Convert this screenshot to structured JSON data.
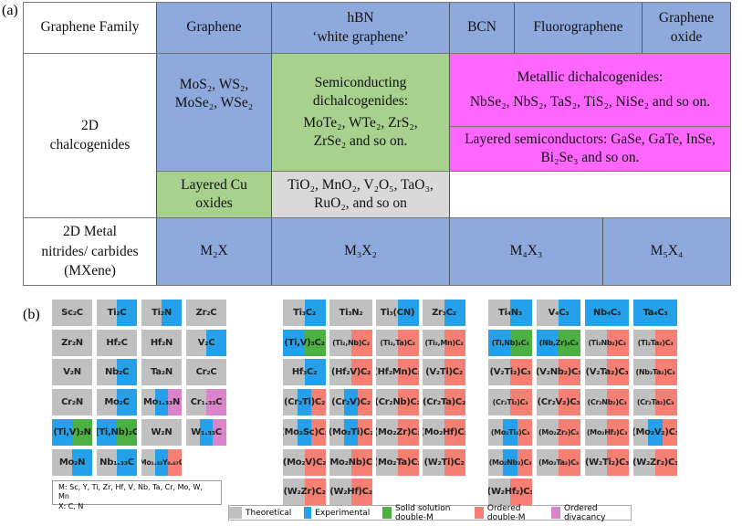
{
  "part_a": {
    "label": "(a)",
    "header": {
      "family": "Graphene Family",
      "graphene": "Graphene",
      "hbn_line1": "hBN",
      "hbn_line2": "‘white graphene’",
      "bcn": "BCN",
      "fluoro": "Fluorographene",
      "oxide_line1": "Graphene",
      "oxide_line2": "oxide"
    },
    "chalco": {
      "label_line1": "2D",
      "label_line2": "chalcogenides",
      "graphene_col": "MoS₂, WS₂, MoSe₂, WSe₂",
      "semi": "Semiconducting dichalcogenides:",
      "semi_list": "MoTe₂, WTe₂, ZrS₂, ZrSe₂ and so on.",
      "metallic": "Metallic dichalcogenides:",
      "metallic_list": "NbSe₂, NbS₂, TaS₂, TiS₂, NiSe₂ and so on.",
      "layered_semi": "Layered semiconductors: GaSe, GaTe, InSe, Bi₂Se₃ and so on.",
      "cu_oxides": "Layered Cu oxides",
      "oxides": "TiO₂, MnO₂, V₂O₅, TaO₃, RuO₂, and so on"
    },
    "mxene": {
      "label_line1": "2D Metal",
      "label_line2": "nitrides/ carbides",
      "label_line3": "(MXene)",
      "m2x": "M₂X",
      "m3x2": "M₃X₂",
      "m4x3": "M₄X₃",
      "m5x4": "M₅X₄"
    },
    "colors": {
      "blue": "#8eaadc",
      "green": "#a9d18e",
      "gray": "#d9d9d9",
      "magenta": "#ff66ff"
    }
  },
  "part_b": {
    "label": "(b)",
    "categories": {
      "T": {
        "name": "Theoretical",
        "color": "#c0c0c0"
      },
      "E": {
        "name": "Experimental",
        "color": "#25a0ea"
      },
      "S": {
        "name": "Solid solution double-M",
        "color": "#4cb043"
      },
      "O": {
        "name": "Ordered double-M",
        "color": "#f47f72"
      },
      "D": {
        "name": "Ordered divacancy",
        "color": "#dc84c9"
      }
    },
    "legend": [
      "T",
      "E",
      "S",
      "O",
      "D"
    ],
    "note_line1": "M: Sc, Y, Ti, Zr, Hf, V, Nb, Ta, Cr, Mo, W, Mn",
    "note_line2": "X: C, N",
    "blocks": [
      [
        [
          [
            "Sc₂C",
            "T"
          ],
          [
            "Ti₂C",
            "TE"
          ],
          [
            "Ti₂N",
            "TE"
          ],
          [
            "Zr₂C",
            "T"
          ]
        ],
        [
          [
            "Zr₂N",
            "T"
          ],
          [
            "Hf₂C",
            "T"
          ],
          [
            "Hf₂N",
            "T"
          ],
          [
            "V₂C",
            "TE"
          ]
        ],
        [
          [
            "V₂N",
            "T"
          ],
          [
            "Nb₂C",
            "TE"
          ],
          [
            "Ta₂N",
            "T"
          ],
          [
            "Cr₂C",
            "T"
          ]
        ],
        [
          [
            "Cr₂N",
            "T"
          ],
          [
            "Mo₂C",
            "TE"
          ],
          [
            "Mo₁.₃₃N",
            "TED"
          ],
          [
            "Cr₁.₃₃C",
            "TD"
          ]
        ],
        [
          [
            "(Ti,V)₂N",
            "ES"
          ],
          [
            "(Ti,Nb)₂C",
            "ES"
          ],
          [
            "W₂N",
            "T"
          ],
          [
            "W₁.₃₃C",
            "TED"
          ]
        ],
        [
          [
            "Mo₂N",
            "TE"
          ],
          [
            "Nb₁.₃₃C",
            "TE"
          ],
          [
            "Mo₁.₃₃Y₀.₆₇C",
            "TEO"
          ]
        ]
      ],
      [
        [
          [
            "Ti₃C₂",
            "TE"
          ],
          [
            "Ti₃N₂",
            "T"
          ],
          [
            "Ti₃(CN)",
            "TE"
          ],
          [
            "Zr₃C₂",
            "TE"
          ]
        ],
        [
          [
            "(Ti,V)₃C₂",
            "ES"
          ],
          [
            "(Ti₂,Nb)C₂",
            "TO"
          ],
          [
            "(Ti₂,Ta)C₂",
            "TO"
          ],
          [
            "(Ti₂,Mn)C₂",
            "TO"
          ]
        ],
        [
          [
            "Hf₃C₂",
            "TE"
          ],
          [
            "(Hf₂V)C₂",
            "TO"
          ],
          [
            "(Hf₂Mn)C₂",
            "TO"
          ],
          [
            "(V₂Ti)C₂",
            "TO"
          ]
        ],
        [
          [
            "(Cr₂Ti)C₂",
            "TEO"
          ],
          [
            "(Cr₂V)C₂",
            "TEO"
          ],
          [
            "(Cr₂Nb)C₂",
            "TO"
          ],
          [
            "(Cr₂Ta)C₂",
            "TO"
          ]
        ],
        [
          [
            "(Mo₂Sc)C₂",
            "TEO"
          ],
          [
            "(Mo₂Ti)C₂",
            "TEO"
          ],
          [
            "(Mo₂Zr)C₂",
            "TO"
          ],
          [
            "(Mo₂Hf)C₂",
            "TO"
          ]
        ],
        [
          [
            "(Mo₂V)C₂",
            "TO"
          ],
          [
            "(Mo₂Nb)C₂",
            "TO"
          ],
          [
            "(Mo₂Ta)C₂",
            "TO"
          ],
          [
            "(W₂Ti)C₂",
            "TO"
          ]
        ],
        [
          [
            "(W₂Zr)C₂",
            "TO"
          ],
          [
            "(W₂Hf)C₂",
            "TO"
          ]
        ]
      ],
      [
        [
          [
            "Ti₄N₃",
            "TE"
          ],
          [
            "V₄C₃",
            "TE"
          ],
          [
            "Nb₄C₃",
            "E"
          ],
          [
            "Ta₄C₃",
            "E"
          ]
        ],
        [
          [
            "(Ti,Nb)₄C₃",
            "ES"
          ],
          [
            "(Nb,Zr)₄C₃",
            "ES"
          ],
          [
            "(Ti₂Nb₂)C₃",
            "TO"
          ],
          [
            "(Ti₂Ta₂)C₃",
            "TO"
          ]
        ],
        [
          [
            "(V₂Ti₂)C₃",
            "TO"
          ],
          [
            "(V₂Nb₂)C₃",
            "TO"
          ],
          [
            "(V₂Ta₂)C₃",
            "TO"
          ],
          [
            "(Nb₂Ta₂)C₃",
            "TO"
          ]
        ],
        [
          [
            "(Cr₂Ti₂)C₃",
            "TO"
          ],
          [
            "(Cr₂V₂)C₃",
            "TO"
          ],
          [
            "(Cr₂Nb₂)C₃",
            "TO"
          ],
          [
            "(Cr₂Ta₂)C₃",
            "TO"
          ]
        ],
        [
          [
            "(Mo₂Ti₂)C₃",
            "TEO"
          ],
          [
            "(Mo₂Zr₂)C₃",
            "TO"
          ],
          [
            "(Mo₂Hf₂)C₃",
            "TO"
          ],
          [
            "(Mo₂V₂)C₃",
            "TEO"
          ]
        ],
        [
          [
            "(Mo₂Nb₂)C₃",
            "TEO"
          ],
          [
            "(Mo₂Ta₂)C₃",
            "TO"
          ],
          [
            "(W₂Ti₂)C₃",
            "TO"
          ],
          [
            "(W₂Zr₂)C₃",
            "TO"
          ]
        ],
        [
          [
            "(W₂Hf₂)C₃",
            "TO"
          ]
        ]
      ]
    ]
  }
}
